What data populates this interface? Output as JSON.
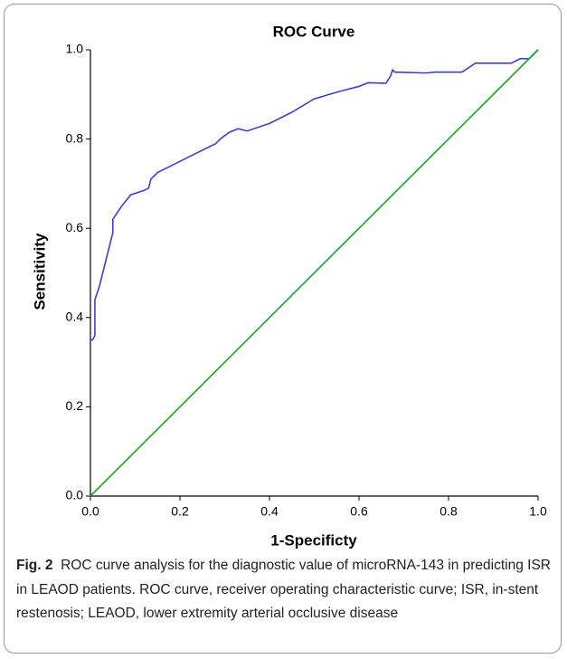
{
  "chart_data": {
    "type": "line",
    "title": "ROC Curve",
    "x_label": "1-Specificty",
    "y_label": "Sensitivity",
    "xlim": [
      0,
      1
    ],
    "ylim": [
      0,
      1
    ],
    "xticks": [
      {
        "value": 0,
        "label": "0.0"
      },
      {
        "value": 0.2,
        "label": "0.2"
      },
      {
        "value": 0.4,
        "label": "0.4"
      },
      {
        "value": 0.6,
        "label": "0.6"
      },
      {
        "value": 0.8,
        "label": "0.8"
      },
      {
        "value": 1,
        "label": "1.0"
      }
    ],
    "yticks": [
      {
        "value": 0,
        "label": "0.0"
      },
      {
        "value": 0.2,
        "label": "0.2"
      },
      {
        "value": 0.4,
        "label": "0.4"
      },
      {
        "value": 0.6,
        "label": "0.6"
      },
      {
        "value": 0.8,
        "label": "0.8"
      },
      {
        "value": 1,
        "label": "1.0"
      }
    ],
    "series": [
      {
        "color": "#3a3fd0",
        "x": [
          0,
          0.005,
          0.01,
          0.01,
          0.02,
          0.03,
          0.05,
          0.05,
          0.07,
          0.09,
          0.12,
          0.13,
          0.135,
          0.15,
          0.18,
          0.22,
          0.28,
          0.29,
          0.31,
          0.33,
          0.35,
          0.4,
          0.45,
          0.5,
          0.55,
          0.6,
          0.62,
          0.66,
          0.67,
          0.675,
          0.68,
          0.75,
          0.77,
          0.83,
          0.86,
          0.94,
          0.96,
          0.98,
          0.99,
          1
        ],
        "values": [
          0.35,
          0.35,
          0.36,
          0.44,
          0.47,
          0.51,
          0.59,
          0.62,
          0.65,
          0.675,
          0.685,
          0.69,
          0.71,
          0.725,
          0.74,
          0.76,
          0.79,
          0.8,
          0.815,
          0.823,
          0.818,
          0.835,
          0.86,
          0.89,
          0.905,
          0.918,
          0.926,
          0.925,
          0.94,
          0.955,
          0.95,
          0.948,
          0.95,
          0.95,
          0.97,
          0.97,
          0.98,
          0.98,
          0.99,
          1
        ]
      },
      {
        "color": "#1aa31a",
        "x": [
          0,
          1
        ],
        "values": [
          0,
          1
        ]
      }
    ]
  },
  "caption": {
    "label": "Fig. 2",
    "text": "ROC curve analysis for the diagnostic value of microRNA-143 in predicting ISR in LEAOD patients. ROC curve, receiver operating characteristic curve; ISR, in-stent restenosis; LEAOD, lower extremity arterial occlusive disease"
  }
}
